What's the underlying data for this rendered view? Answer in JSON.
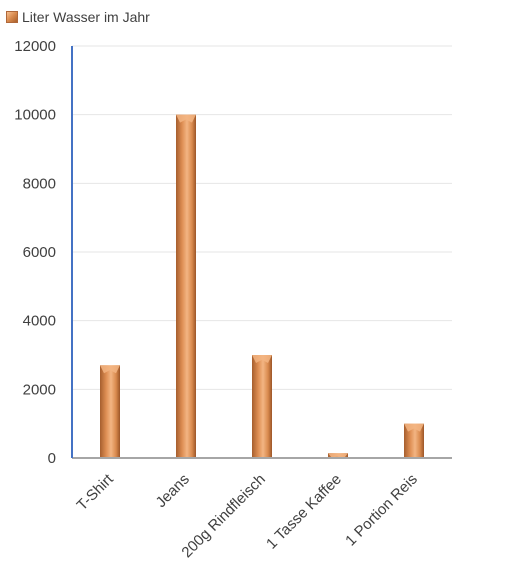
{
  "legend": {
    "label": "Liter Wasser im Jahr",
    "icon": "legend-swatch"
  },
  "colors": {
    "bar_light": "#f3b583",
    "bar_mid": "#dd8d52",
    "bar_dark": "#a65e2e",
    "axis": "#4472c4",
    "grid": "#e6e6e6"
  },
  "chart_data": {
    "type": "bar",
    "categories": [
      "T-Shirt",
      "Jeans",
      "200g Rindfleisch",
      "1 Tasse Kaffee",
      "1 Portion Reis"
    ],
    "series": [
      {
        "name": "Liter Wasser im Jahr",
        "values": [
          2700,
          10000,
          3000,
          140,
          1000
        ]
      }
    ],
    "ylim": [
      0,
      12000
    ],
    "yticks": [
      0,
      2000,
      4000,
      6000,
      8000,
      10000,
      12000
    ],
    "grid": true,
    "legend_position": "top-left"
  }
}
